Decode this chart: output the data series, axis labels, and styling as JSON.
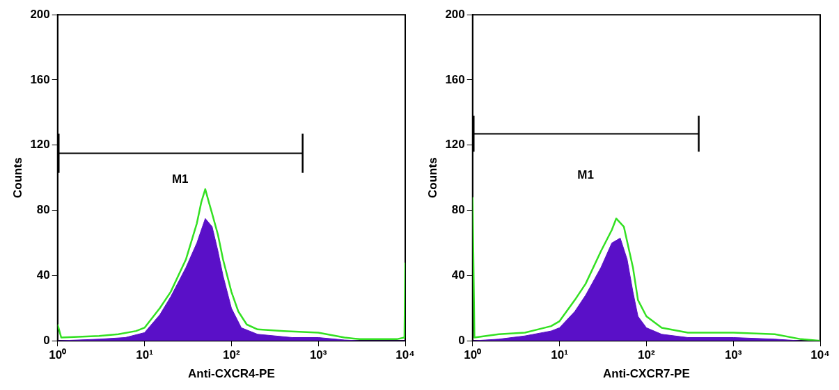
{
  "chart_data": [
    {
      "type": "area",
      "xlabel": "Anti-CXCR4-PE",
      "ylabel": "Counts",
      "log": "x",
      "xlim": [
        1,
        10000
      ],
      "ylim": [
        0,
        200
      ],
      "xticks": [
        {
          "value": 1,
          "label": "10⁰"
        },
        {
          "value": 10,
          "label": "10¹"
        },
        {
          "value": 100,
          "label": "10²"
        },
        {
          "value": 1000,
          "label": "10³"
        },
        {
          "value": 10000,
          "label": "10⁴"
        }
      ],
      "yticks": [
        0,
        40,
        80,
        120,
        160,
        200
      ],
      "grid": false,
      "series": [
        {
          "type": "line",
          "name": "M1",
          "color": "#000000",
          "x": [
            1,
            660
          ],
          "values": [
            115,
            115
          ],
          "errors": [
            12,
            12
          ]
        },
        {
          "color": "#5a10c8",
          "x": [
            1,
            3,
            6,
            10,
            15,
            20,
            30,
            40,
            50,
            60,
            70,
            80,
            100,
            130,
            200,
            500,
            1000,
            2000,
            3000,
            10000
          ],
          "values": [
            0,
            1,
            2,
            5,
            16,
            27,
            45,
            60,
            75,
            70,
            55,
            40,
            20,
            8,
            4,
            2,
            2,
            0.5,
            0,
            0
          ]
        },
        {
          "type": "line",
          "color": "#33e022",
          "x": [
            1,
            1.1,
            3,
            5,
            8,
            10,
            15,
            20,
            30,
            40,
            45,
            50,
            55,
            60,
            70,
            80,
            100,
            120,
            150,
            200,
            400,
            1000,
            2000,
            3000,
            8000,
            9800,
            10000
          ],
          "values": [
            10,
            2,
            3,
            4,
            6,
            8,
            20,
            30,
            50,
            72,
            85,
            93,
            85,
            78,
            65,
            50,
            30,
            18,
            10,
            7,
            6,
            5,
            2,
            1,
            1,
            2,
            48
          ]
        }
      ]
    },
    {
      "type": "area",
      "xlabel": "Anti-CXCR7-PE",
      "ylabel": "Counts",
      "log": "x",
      "xlim": [
        1,
        10000
      ],
      "ylim": [
        0,
        200
      ],
      "xticks": [
        {
          "value": 1,
          "label": "10⁰"
        },
        {
          "value": 10,
          "label": "10¹"
        },
        {
          "value": 100,
          "label": "10²"
        },
        {
          "value": 1000,
          "label": "10³"
        },
        {
          "value": 10000,
          "label": "10⁴"
        }
      ],
      "yticks": [
        0,
        40,
        80,
        120,
        160,
        200
      ],
      "grid": false,
      "series": [
        {
          "type": "line",
          "name": "M1",
          "color": "#000000",
          "x": [
            1,
            400
          ],
          "values": [
            127,
            127
          ],
          "errors": [
            11,
            11
          ]
        },
        {
          "color": "#5a10c8",
          "x": [
            1,
            2,
            4,
            8,
            10,
            15,
            20,
            30,
            40,
            50,
            60,
            70,
            80,
            100,
            150,
            300,
            1000,
            3000,
            6000,
            10000
          ],
          "values": [
            0,
            1,
            3,
            6,
            8,
            18,
            28,
            45,
            60,
            63,
            50,
            30,
            15,
            8,
            4,
            2,
            2,
            1,
            0,
            0
          ]
        },
        {
          "type": "line",
          "color": "#33e022",
          "x": [
            1,
            1.05,
            2,
            4,
            8,
            10,
            15,
            20,
            30,
            40,
            45,
            55,
            70,
            80,
            100,
            150,
            300,
            1000,
            3000,
            6000,
            10000
          ],
          "values": [
            88,
            2,
            4,
            5,
            9,
            12,
            25,
            35,
            55,
            68,
            75,
            70,
            45,
            25,
            15,
            8,
            5,
            5,
            4,
            1,
            0
          ]
        }
      ]
    }
  ]
}
